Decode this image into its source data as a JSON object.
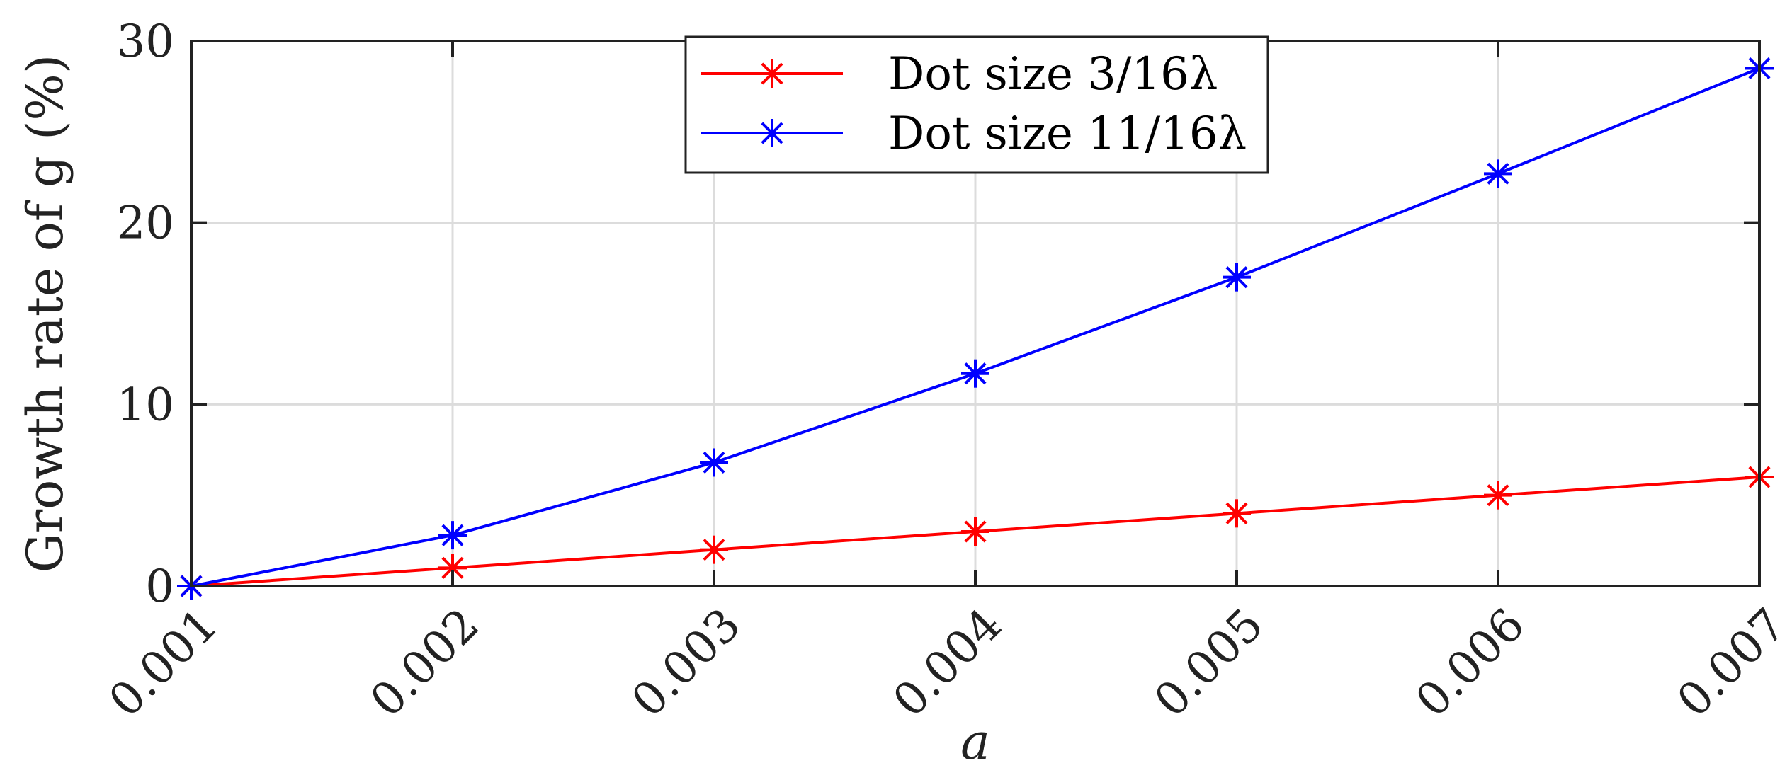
{
  "chart_data": {
    "type": "line",
    "title": "",
    "xlabel": "a",
    "ylabel": "Growth rate of g (%)",
    "x": [
      0.001,
      0.002,
      0.003,
      0.004,
      0.005,
      0.006,
      0.007
    ],
    "x_tick_labels": [
      "0.001",
      "0.002",
      "0.003",
      "0.004",
      "0.005",
      "0.006",
      "0.007"
    ],
    "y_ticks": [
      0,
      10,
      20,
      30
    ],
    "y_tick_labels": [
      "0",
      "10",
      "20",
      "30"
    ],
    "xlim": [
      0.001,
      0.007
    ],
    "ylim": [
      0,
      30
    ],
    "grid": true,
    "legend_position": "top-center",
    "series": [
      {
        "name": "Dot size 3/16λ",
        "color": "#ff0000",
        "marker": "asterisk",
        "values": [
          0,
          1.0,
          2.0,
          3.0,
          4.0,
          5.0,
          6.0
        ]
      },
      {
        "name": "Dot size 11/16λ",
        "color": "#0000ff",
        "marker": "asterisk",
        "values": [
          0,
          2.8,
          6.8,
          11.7,
          17.0,
          22.7,
          28.5
        ]
      }
    ]
  }
}
